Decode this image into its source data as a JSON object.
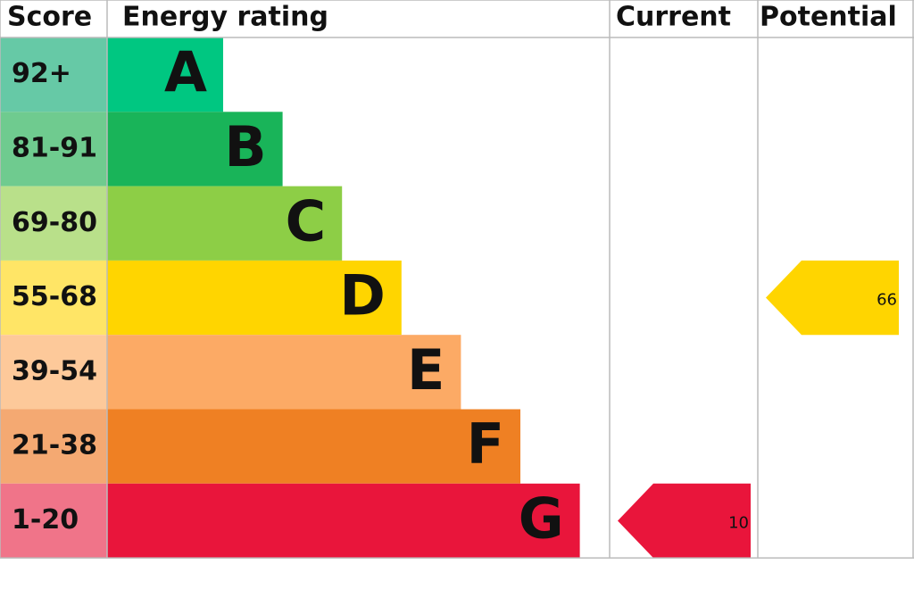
{
  "chart_data": {
    "type": "epc",
    "headers": {
      "score": "Score",
      "rating": "Energy rating",
      "current": "Current",
      "potential": "Potential"
    },
    "bands": [
      {
        "score": "92+",
        "letter": "A",
        "color": "#00c781",
        "score_color": "#66c9a6"
      },
      {
        "score": "81-91",
        "letter": "B",
        "color": "#19b459",
        "score_color": "#6fcb8f"
      },
      {
        "score": "69-80",
        "letter": "C",
        "color": "#8dce46",
        "score_color": "#b9e08a"
      },
      {
        "score": "55-68",
        "letter": "D",
        "color": "#ffd500",
        "score_color": "#ffe566"
      },
      {
        "score": "39-54",
        "letter": "E",
        "color": "#fcaa65",
        "score_color": "#fdc99a"
      },
      {
        "score": "21-38",
        "letter": "F",
        "color": "#ef8023",
        "score_color": "#f4a972"
      },
      {
        "score": "1-20",
        "letter": "G",
        "color": "#e9153b",
        "score_color": "#f07489"
      }
    ],
    "current": 10,
    "potential": 66
  }
}
